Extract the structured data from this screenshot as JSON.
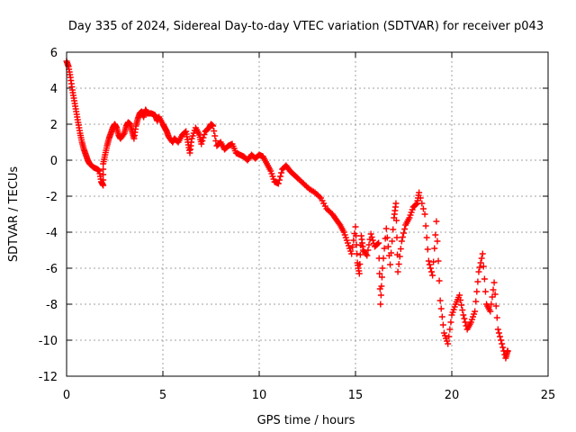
{
  "chart_data": {
    "type": "scatter",
    "title": "Day 335 of 2024, Sidereal Day-to-day VTEC variation (SDTVAR) for receiver p043",
    "xlabel": "GPS time / hours",
    "ylabel": "SDTVAR / TECUs",
    "xlim": [
      0,
      25
    ],
    "ylim": [
      -12,
      6
    ],
    "xticks": [
      0,
      5,
      10,
      15,
      20,
      25
    ],
    "yticks": [
      -12,
      -10,
      -8,
      -6,
      -4,
      -2,
      0,
      2,
      4,
      6
    ],
    "grid": true,
    "marker": "+",
    "series": [
      {
        "name": "SDTVAR",
        "color": "#ff0000",
        "points": [
          [
            0.0,
            5.5
          ],
          [
            0.1,
            5.2
          ],
          [
            0.2,
            4.6
          ],
          [
            0.3,
            3.9
          ],
          [
            0.4,
            3.3
          ],
          [
            0.5,
            2.7
          ],
          [
            0.6,
            2.1
          ],
          [
            0.7,
            1.5
          ],
          [
            0.8,
            1.0
          ],
          [
            0.9,
            0.6
          ],
          [
            1.0,
            0.3
          ],
          [
            1.1,
            0.0
          ],
          [
            1.2,
            -0.2
          ],
          [
            1.4,
            -0.4
          ],
          [
            1.6,
            -0.5
          ],
          [
            1.7,
            -0.6
          ],
          [
            1.8,
            -1.2
          ],
          [
            1.9,
            -1.4
          ],
          [
            1.9,
            -0.2
          ],
          [
            2.0,
            0.3
          ],
          [
            2.1,
            0.8
          ],
          [
            2.2,
            1.2
          ],
          [
            2.3,
            1.5
          ],
          [
            2.4,
            1.8
          ],
          [
            2.5,
            2.0
          ],
          [
            2.6,
            1.8
          ],
          [
            2.7,
            1.4
          ],
          [
            2.8,
            1.2
          ],
          [
            3.0,
            1.5
          ],
          [
            3.1,
            1.9
          ],
          [
            3.2,
            2.1
          ],
          [
            3.3,
            2.0
          ],
          [
            3.4,
            1.6
          ],
          [
            3.5,
            1.2
          ],
          [
            3.6,
            1.9
          ],
          [
            3.7,
            2.3
          ],
          [
            3.8,
            2.6
          ],
          [
            3.9,
            2.7
          ],
          [
            4.0,
            2.4
          ],
          [
            4.1,
            2.8
          ],
          [
            4.2,
            2.6
          ],
          [
            4.4,
            2.6
          ],
          [
            4.6,
            2.5
          ],
          [
            4.7,
            2.2
          ],
          [
            4.8,
            2.4
          ],
          [
            5.0,
            2.0
          ],
          [
            5.1,
            1.8
          ],
          [
            5.2,
            1.6
          ],
          [
            5.3,
            1.3
          ],
          [
            5.5,
            1.0
          ],
          [
            5.6,
            1.2
          ],
          [
            5.8,
            1.0
          ],
          [
            6.0,
            1.4
          ],
          [
            6.2,
            1.6
          ],
          [
            6.3,
            1.0
          ],
          [
            6.4,
            0.4
          ],
          [
            6.5,
            1.2
          ],
          [
            6.7,
            1.8
          ],
          [
            6.9,
            1.4
          ],
          [
            7.0,
            0.9
          ],
          [
            7.2,
            1.6
          ],
          [
            7.4,
            1.8
          ],
          [
            7.5,
            2.0
          ],
          [
            7.6,
            1.9
          ],
          [
            7.8,
            0.8
          ],
          [
            8.0,
            1.0
          ],
          [
            8.2,
            0.6
          ],
          [
            8.4,
            0.8
          ],
          [
            8.6,
            0.9
          ],
          [
            8.8,
            0.4
          ],
          [
            9.0,
            0.3
          ],
          [
            9.2,
            0.2
          ],
          [
            9.4,
            0.0
          ],
          [
            9.6,
            0.3
          ],
          [
            9.8,
            0.1
          ],
          [
            10.0,
            0.3
          ],
          [
            10.2,
            0.2
          ],
          [
            10.4,
            -0.2
          ],
          [
            10.6,
            -0.6
          ],
          [
            10.8,
            -1.2
          ],
          [
            11.0,
            -1.3
          ],
          [
            11.2,
            -0.5
          ],
          [
            11.4,
            -0.3
          ],
          [
            11.6,
            -0.6
          ],
          [
            11.8,
            -0.8
          ],
          [
            12.0,
            -1.0
          ],
          [
            12.3,
            -1.3
          ],
          [
            12.6,
            -1.6
          ],
          [
            12.9,
            -1.8
          ],
          [
            13.2,
            -2.1
          ],
          [
            13.5,
            -2.7
          ],
          [
            13.8,
            -3.0
          ],
          [
            14.0,
            -3.3
          ],
          [
            14.2,
            -3.6
          ],
          [
            14.4,
            -4.0
          ],
          [
            14.6,
            -4.6
          ],
          [
            14.8,
            -5.2
          ],
          [
            15.0,
            -3.7
          ],
          [
            15.1,
            -5.7
          ],
          [
            15.2,
            -6.3
          ],
          [
            15.3,
            -4.2
          ],
          [
            15.4,
            -5.0
          ],
          [
            15.6,
            -5.3
          ],
          [
            15.8,
            -4.1
          ],
          [
            16.0,
            -4.8
          ],
          [
            16.2,
            -4.6
          ],
          [
            16.3,
            -8.0
          ],
          [
            16.4,
            -6.0
          ],
          [
            16.6,
            -3.8
          ],
          [
            16.8,
            -5.8
          ],
          [
            17.0,
            -3.2
          ],
          [
            17.1,
            -2.4
          ],
          [
            17.2,
            -6.2
          ],
          [
            17.4,
            -4.5
          ],
          [
            17.6,
            -3.6
          ],
          [
            17.8,
            -3.2
          ],
          [
            18.0,
            -2.6
          ],
          [
            18.2,
            -2.4
          ],
          [
            18.3,
            -1.8
          ],
          [
            18.6,
            -3.0
          ],
          [
            18.8,
            -5.6
          ],
          [
            19.0,
            -6.4
          ],
          [
            19.2,
            -3.4
          ],
          [
            19.4,
            -7.8
          ],
          [
            19.6,
            -9.6
          ],
          [
            19.8,
            -10.2
          ],
          [
            20.0,
            -8.6
          ],
          [
            20.2,
            -8.0
          ],
          [
            20.4,
            -7.5
          ],
          [
            20.6,
            -8.6
          ],
          [
            20.8,
            -9.4
          ],
          [
            21.0,
            -9.0
          ],
          [
            21.2,
            -8.4
          ],
          [
            21.4,
            -6.2
          ],
          [
            21.6,
            -5.2
          ],
          [
            21.8,
            -8.0
          ],
          [
            22.0,
            -8.4
          ],
          [
            22.2,
            -6.8
          ],
          [
            22.4,
            -9.4
          ],
          [
            22.6,
            -10.2
          ],
          [
            22.8,
            -11.0
          ],
          [
            22.9,
            -10.6
          ]
        ]
      }
    ]
  }
}
